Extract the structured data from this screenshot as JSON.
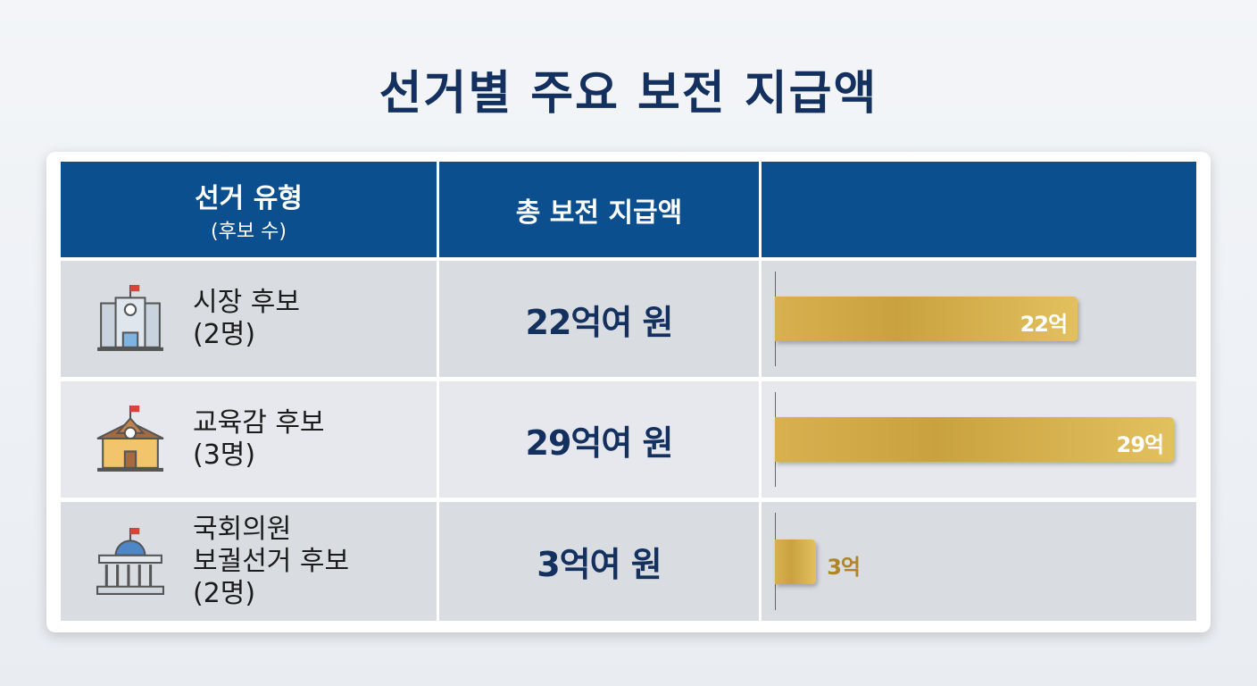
{
  "title": "선거별 주요 보전 지급액",
  "table": {
    "headers": [
      {
        "label": "선거 유형",
        "sub": "(후보 수)"
      },
      {
        "label": "총 보전 지급액"
      }
    ],
    "rows": [
      {
        "type": [
          "시장 후보"
        ],
        "count": "(2명)",
        "amount": "22억여 원",
        "bar": {
          "value": 22,
          "value_label": "22억"
        }
      },
      {
        "type": [
          "교육감 후보"
        ],
        "count": "(3명)",
        "amount": "29억여 원",
        "bar": {
          "value": 29,
          "value_label": "29억"
        }
      },
      {
        "type": [
          "국회의원",
          "보궐선거 후보"
        ],
        "count": "(2명)",
        "amount": "3억여 원",
        "bar": {
          "value": 3,
          "value_label": "3억"
        }
      }
    ]
  }
}
